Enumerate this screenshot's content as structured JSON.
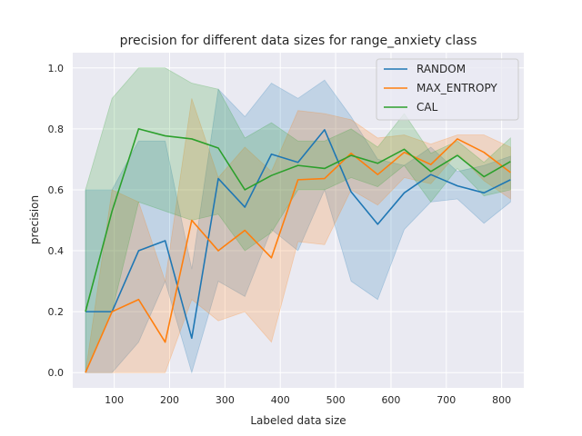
{
  "chart_data": {
    "type": "line",
    "title": "precision for different data sizes for range_anxiety class",
    "xlabel": "Labeled data size",
    "ylabel": "precision",
    "xlim": [
      25,
      840
    ],
    "ylim": [
      -0.05,
      1.05
    ],
    "xticks": [
      100,
      200,
      300,
      400,
      500,
      600,
      700,
      800
    ],
    "yticks": [
      0.0,
      0.2,
      0.4,
      0.6,
      0.8,
      1.0
    ],
    "xtick_labels": [
      "100",
      "200",
      "300",
      "400",
      "500",
      "600",
      "700",
      "800"
    ],
    "ytick_labels": [
      "0.0",
      "0.2",
      "0.4",
      "0.6",
      "0.8",
      "1.0"
    ],
    "grid": true,
    "legend_position": "top-right",
    "x": [
      48,
      96,
      144,
      192,
      240,
      288,
      336,
      384,
      432,
      480,
      528,
      576,
      624,
      672,
      720,
      768,
      816
    ],
    "series": [
      {
        "name": "RANDOM",
        "color": "#1f77b4",
        "values": [
          0.2,
          0.2,
          0.4,
          0.433,
          0.113,
          0.637,
          0.543,
          0.717,
          0.69,
          0.797,
          0.593,
          0.487,
          0.59,
          0.65,
          0.613,
          0.59,
          0.633
        ],
        "lower": [
          0.0,
          0.0,
          0.1,
          0.3,
          0.0,
          0.3,
          0.25,
          0.47,
          0.4,
          0.6,
          0.3,
          0.24,
          0.47,
          0.56,
          0.57,
          0.49,
          0.56
        ],
        "upper": [
          0.6,
          0.6,
          0.76,
          0.76,
          0.34,
          0.93,
          0.84,
          0.95,
          0.9,
          0.96,
          0.84,
          0.7,
          0.68,
          0.74,
          0.66,
          0.68,
          0.71
        ]
      },
      {
        "name": "MAX_ENTROPY",
        "color": "#ff7f0e",
        "values": [
          0.0,
          0.2,
          0.24,
          0.1,
          0.5,
          0.4,
          0.467,
          0.377,
          0.633,
          0.637,
          0.72,
          0.65,
          0.723,
          0.683,
          0.767,
          0.723,
          0.657
        ],
        "lower": [
          0.0,
          0.0,
          0.0,
          0.0,
          0.24,
          0.17,
          0.2,
          0.1,
          0.43,
          0.42,
          0.6,
          0.55,
          0.64,
          0.62,
          0.72,
          0.63,
          0.57
        ],
        "upper": [
          0.0,
          0.6,
          0.56,
          0.3,
          0.9,
          0.64,
          0.74,
          0.66,
          0.86,
          0.85,
          0.83,
          0.77,
          0.78,
          0.75,
          0.78,
          0.78,
          0.74
        ]
      },
      {
        "name": "CAL",
        "color": "#2ca02c",
        "values": [
          0.2,
          0.53,
          0.8,
          0.777,
          0.767,
          0.737,
          0.6,
          0.647,
          0.68,
          0.67,
          0.713,
          0.687,
          0.733,
          0.66,
          0.713,
          0.643,
          0.693
        ],
        "lower": [
          0.0,
          0.2,
          0.56,
          0.53,
          0.5,
          0.52,
          0.4,
          0.46,
          0.6,
          0.6,
          0.64,
          0.61,
          0.68,
          0.56,
          0.67,
          0.58,
          0.6
        ],
        "upper": [
          0.6,
          0.9,
          1.0,
          1.0,
          0.95,
          0.93,
          0.77,
          0.82,
          0.76,
          0.76,
          0.8,
          0.74,
          0.85,
          0.72,
          0.76,
          0.69,
          0.77
        ]
      }
    ]
  }
}
